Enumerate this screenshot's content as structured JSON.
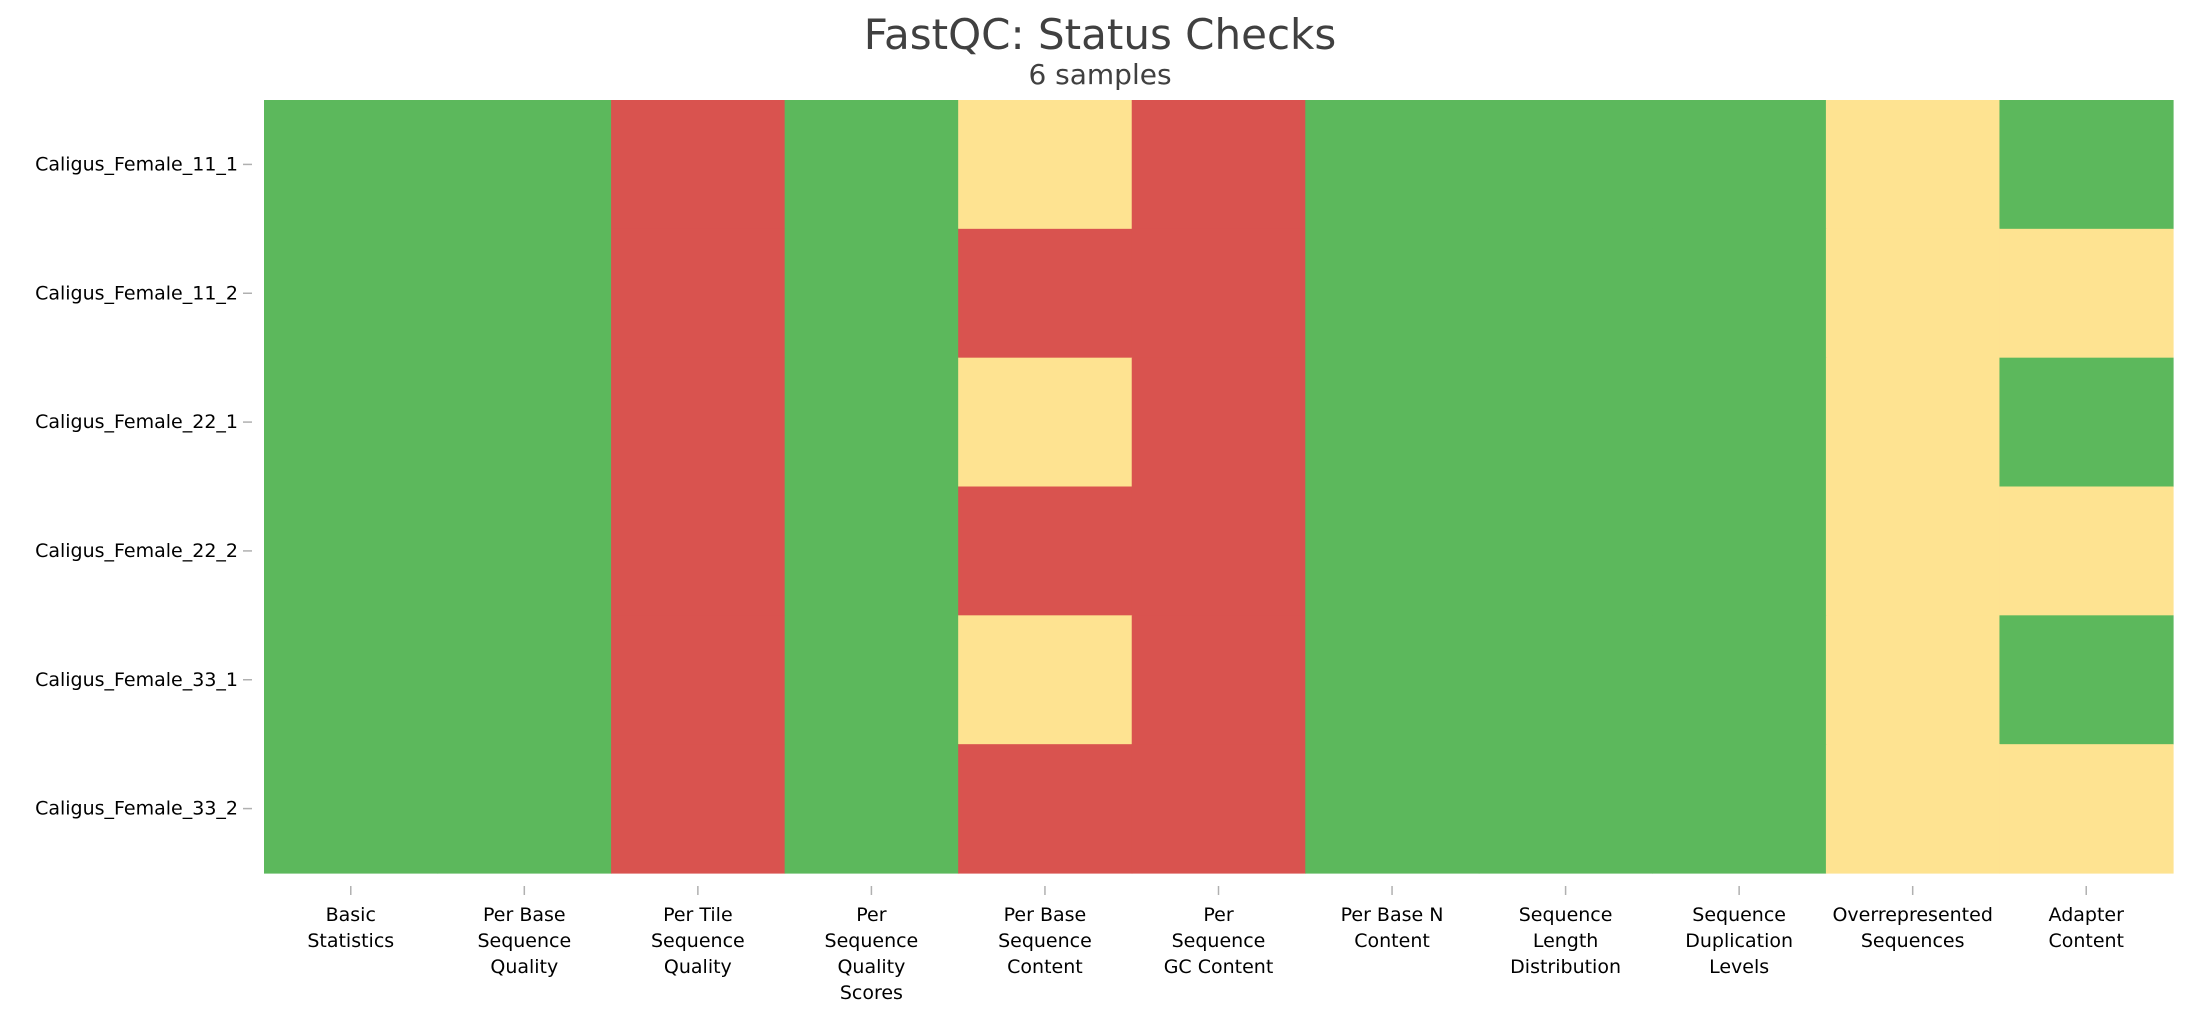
{
  "chart_data": {
    "type": "heatmap",
    "title": "FastQC: Status Checks",
    "subtitle": "6 samples",
    "status_colors": {
      "pass": "#5cb85c",
      "warn": "#fee391",
      "fail": "#d9534f"
    },
    "columns": [
      [
        "Basic",
        "Statistics"
      ],
      [
        "Per Base",
        "Sequence",
        "Quality"
      ],
      [
        "Per Tile",
        "Sequence",
        "Quality"
      ],
      [
        "Per",
        "Sequence",
        "Quality",
        "Scores"
      ],
      [
        "Per Base",
        "Sequence",
        "Content"
      ],
      [
        "Per",
        "Sequence",
        "GC Content"
      ],
      [
        "Per Base N",
        "Content"
      ],
      [
        "Sequence",
        "Length",
        "Distribution"
      ],
      [
        "Sequence",
        "Duplication",
        "Levels"
      ],
      [
        "Overrepresented",
        "Sequences"
      ],
      [
        "Adapter",
        "Content"
      ]
    ],
    "rows": [
      "Caligus_Female_11_1",
      "Caligus_Female_11_2",
      "Caligus_Female_22_1",
      "Caligus_Female_22_2",
      "Caligus_Female_33_1",
      "Caligus_Female_33_2"
    ],
    "values": [
      [
        "pass",
        "pass",
        "fail",
        "pass",
        "warn",
        "fail",
        "pass",
        "pass",
        "pass",
        "warn",
        "pass"
      ],
      [
        "pass",
        "pass",
        "fail",
        "pass",
        "fail",
        "fail",
        "pass",
        "pass",
        "pass",
        "warn",
        "warn"
      ],
      [
        "pass",
        "pass",
        "fail",
        "pass",
        "warn",
        "fail",
        "pass",
        "pass",
        "pass",
        "warn",
        "pass"
      ],
      [
        "pass",
        "pass",
        "fail",
        "pass",
        "fail",
        "fail",
        "pass",
        "pass",
        "pass",
        "warn",
        "warn"
      ],
      [
        "pass",
        "pass",
        "fail",
        "pass",
        "warn",
        "fail",
        "pass",
        "pass",
        "pass",
        "warn",
        "pass"
      ],
      [
        "pass",
        "pass",
        "fail",
        "pass",
        "fail",
        "fail",
        "pass",
        "pass",
        "pass",
        "warn",
        "warn"
      ]
    ]
  }
}
